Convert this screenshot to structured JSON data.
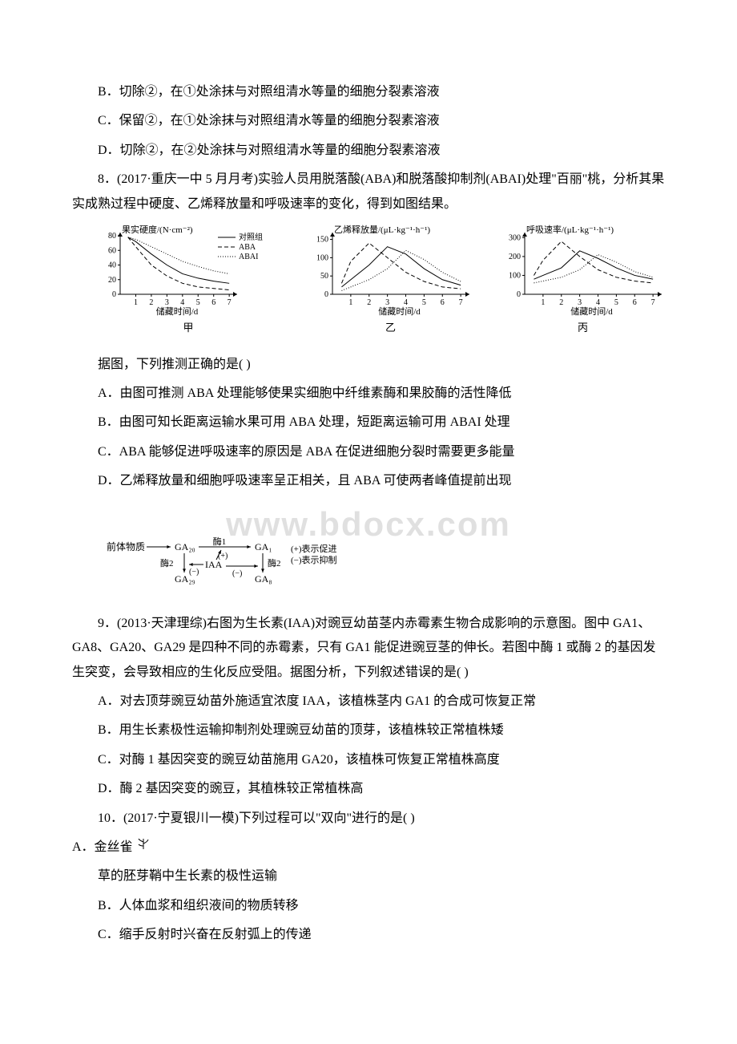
{
  "opts_top": {
    "B": "B．切除②，在①处涂抹与对照组清水等量的细胞分裂素溶液",
    "C": "C．保留②，在①处涂抹与对照组清水等量的细胞分裂素溶液",
    "D": "D．切除②，在②处涂抹与对照组清水等量的细胞分裂素溶液"
  },
  "q8": {
    "stem": "8．(2017·重庆一中 5 月月考)实验人员用脱落酸(ABA)和脱落酸抑制剂(ABAI)处理\"百丽\"桃，分析其果实成熟过程中硬度、乙烯释放量和呼吸速率的变化，得到如图结果。",
    "post": "据图，下列推测正确的是(      )",
    "A": "A．由图可推测 ABA 处理能够使果实细胞中纤维素酶和果胶酶的活性降低",
    "B": "B．由图可知长距离运输水果可用 ABA 处理，短距离运输可用 ABAI 处理",
    "C": "C．ABA 能够促进呼吸速率的原因是 ABA 在促进细胞分裂时需要更多能量",
    "D": "D．乙烯释放量和细胞呼吸速率呈正相关，且 ABA 可使两者峰值提前出现"
  },
  "charts": {
    "font_tick": 10,
    "font_axis": 11,
    "color_axis": "#000000",
    "color_solid": "#000000",
    "jia": {
      "label": "甲",
      "ylabel": "果实硬度/(N·cm⁻²)",
      "xlabel": "储藏时间/d",
      "yticks": [
        0,
        20,
        40,
        60,
        80
      ],
      "xticks": [
        1,
        2,
        3,
        4,
        5,
        6,
        7
      ],
      "ylim": [
        0,
        80
      ],
      "xlim": [
        0,
        7.3
      ],
      "legend": [
        "对照组",
        "ABA",
        "ABAI"
      ],
      "series": {
        "control": {
          "dash": "",
          "pts": [
            [
              0.5,
              78
            ],
            [
              1,
              72
            ],
            [
              2,
              55
            ],
            [
              3,
              40
            ],
            [
              4,
              28
            ],
            [
              5,
              22
            ],
            [
              6,
              18
            ],
            [
              7,
              15
            ]
          ]
        },
        "aba": {
          "dash": "5,3",
          "pts": [
            [
              0.5,
              78
            ],
            [
              1,
              65
            ],
            [
              2,
              40
            ],
            [
              3,
              25
            ],
            [
              4,
              15
            ],
            [
              5,
              10
            ],
            [
              6,
              8
            ],
            [
              7,
              6
            ]
          ]
        },
        "abai": {
          "dash": "1,2",
          "pts": [
            [
              0.5,
              78
            ],
            [
              1,
              75
            ],
            [
              2,
              65
            ],
            [
              3,
              55
            ],
            [
              4,
              45
            ],
            [
              5,
              38
            ],
            [
              6,
              32
            ],
            [
              7,
              28
            ]
          ]
        }
      }
    },
    "yi": {
      "label": "乙",
      "ylabel": "乙烯释放量/(μL·kg⁻¹·h⁻¹)",
      "xlabel": "储藏时间/d",
      "yticks": [
        0,
        50,
        100,
        150
      ],
      "xticks": [
        1,
        2,
        3,
        4,
        5,
        6,
        7
      ],
      "ylim": [
        0,
        160
      ],
      "xlim": [
        0,
        7.3
      ],
      "series": {
        "control": {
          "dash": "",
          "pts": [
            [
              0.5,
              20
            ],
            [
              1,
              40
            ],
            [
              2,
              80
            ],
            [
              3,
              130
            ],
            [
              4,
              110
            ],
            [
              5,
              70
            ],
            [
              6,
              40
            ],
            [
              7,
              25
            ]
          ]
        },
        "aba": {
          "dash": "5,3",
          "pts": [
            [
              0.5,
              30
            ],
            [
              1,
              90
            ],
            [
              2,
              140
            ],
            [
              3,
              100
            ],
            [
              4,
              60
            ],
            [
              5,
              35
            ],
            [
              6,
              20
            ],
            [
              7,
              15
            ]
          ]
        },
        "abai": {
          "dash": "1,2",
          "pts": [
            [
              0.5,
              10
            ],
            [
              1,
              20
            ],
            [
              2,
              40
            ],
            [
              3,
              70
            ],
            [
              4,
              120
            ],
            [
              5,
              95
            ],
            [
              6,
              60
            ],
            [
              7,
              35
            ]
          ]
        }
      }
    },
    "bing": {
      "label": "丙",
      "ylabel": "呼吸速率/(μL·kg⁻¹·h⁻¹)",
      "xlabel": "储藏时间/d",
      "yticks": [
        0,
        100,
        200,
        300
      ],
      "xticks": [
        1,
        2,
        3,
        4,
        5,
        6,
        7
      ],
      "ylim": [
        0,
        310
      ],
      "xlim": [
        0,
        7.3
      ],
      "series": {
        "control": {
          "dash": "",
          "pts": [
            [
              0.5,
              80
            ],
            [
              1,
              100
            ],
            [
              2,
              140
            ],
            [
              3,
              230
            ],
            [
              4,
              190
            ],
            [
              5,
              140
            ],
            [
              6,
              100
            ],
            [
              7,
              80
            ]
          ]
        },
        "aba": {
          "dash": "5,3",
          "pts": [
            [
              0.5,
              100
            ],
            [
              1,
              180
            ],
            [
              2,
              280
            ],
            [
              3,
              200
            ],
            [
              4,
              130
            ],
            [
              5,
              90
            ],
            [
              6,
              70
            ],
            [
              7,
              60
            ]
          ]
        },
        "abai": {
          "dash": "1,2",
          "pts": [
            [
              0.5,
              60
            ],
            [
              1,
              70
            ],
            [
              2,
              90
            ],
            [
              3,
              130
            ],
            [
              4,
              210
            ],
            [
              5,
              170
            ],
            [
              6,
              120
            ],
            [
              7,
              90
            ]
          ]
        }
      }
    }
  },
  "watermark": "www.bdocx.com",
  "diagram": {
    "nodes": {
      "precursor": "前体物质",
      "ga20": "GA₂₀",
      "ga1": "GA₁",
      "ga29": "GA₂₉",
      "ga8": "GA₈",
      "enz1": "酶1",
      "enz2": "酶2",
      "iaa": "IAA",
      "plus": "(+)",
      "minus": "(−)",
      "legend1": "(+)表示促进",
      "legend2": "(−)表示抑制"
    }
  },
  "q9": {
    "stem": "9．(2013·天津理综)右图为生长素(IAA)对豌豆幼苗茎内赤霉素生物合成影响的示意图。图中 GA1、GA8、GA20、GA29 是四种不同的赤霉素，只有 GA1 能促进豌豆茎的伸长。若图中酶 1 或酶 2 的基因发生突变，会导致相应的生化反应受阻。据图分析，下列叙述错误的是(      )",
    "A": "A．对去顶芽豌豆幼苗外施适宜浓度 IAA，该植株茎内 GA1 的合成可恢复正常",
    "B": "B．用生长素极性运输抑制剂处理豌豆幼苗的顶芽，该植株较正常植株矮",
    "C": "C．对酶 1 基因突变的豌豆幼苗施用 GA20，该植株可恢复正常植株高度",
    "D": "D．酶 2 基因突变的豌豆，其植株较正常植株高"
  },
  "q10": {
    "stem": "10．(2017·宁夏银川一模)下列过程可以\"双向\"进行的是(      )",
    "A_pre": "A．金丝雀",
    "A_post": "草的胚芽鞘中生长素的极性运输",
    "B": "B．人体血浆和组织液间的物质转移",
    "C": "C．缩手反射时兴奋在反射弧上的传递"
  },
  "glyph": {
    "width": 18,
    "height": 18
  }
}
